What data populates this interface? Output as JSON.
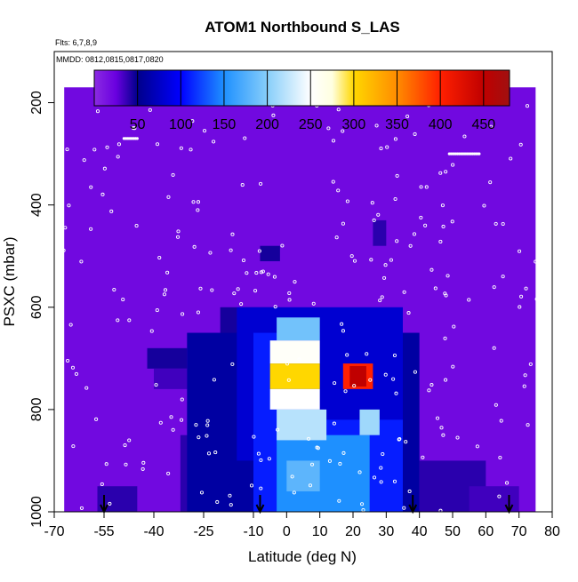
{
  "chart_data": {
    "type": "heatmap",
    "title": "ATOM1 Northbound S_LAS",
    "annotations": [
      "Flts: 6,7,8,9",
      "MMDD: 0812,0815,0817,0820"
    ],
    "xlabel": "Latitude (deg N)",
    "ylabel": "PSXC (mbar)",
    "xlim": [
      -70,
      80
    ],
    "ylim": [
      1000,
      100
    ],
    "x_ticks": [
      -70,
      -55,
      -40,
      -25,
      -10,
      0,
      10,
      20,
      30,
      40,
      50,
      60,
      70,
      80
    ],
    "x_tick_labels": [
      "-70",
      "-55",
      "-40",
      "-25",
      "-10",
      "0",
      "10",
      "20",
      "30",
      "40",
      "50",
      "60",
      "70",
      "80"
    ],
    "y_ticks": [
      200,
      400,
      600,
      800,
      1000
    ],
    "y_tick_labels": [
      "200",
      "400",
      "600",
      "800",
      "1000"
    ],
    "colorbar": {
      "range": [
        0,
        480
      ],
      "ticks": [
        50,
        100,
        150,
        200,
        250,
        300,
        350,
        400,
        450
      ],
      "tick_labels": [
        "50",
        "100",
        "150",
        "200",
        "250",
        "300",
        "350",
        "400",
        "450"
      ],
      "stops": [
        {
          "value": 0,
          "color": "#8b2be2"
        },
        {
          "value": 25,
          "color": "#6a00e0"
        },
        {
          "value": 50,
          "color": "#00008b"
        },
        {
          "value": 100,
          "color": "#0000ff"
        },
        {
          "value": 150,
          "color": "#1e90ff"
        },
        {
          "value": 200,
          "color": "#87cefa"
        },
        {
          "value": 250,
          "color": "#ffffff"
        },
        {
          "value": 275,
          "color": "#ffffe0"
        },
        {
          "value": 300,
          "color": "#ffd700"
        },
        {
          "value": 350,
          "color": "#ff8c00"
        },
        {
          "value": 400,
          "color": "#ff2000"
        },
        {
          "value": 450,
          "color": "#c00000"
        },
        {
          "value": 480,
          "color": "#a01010"
        }
      ]
    },
    "heatmap_cells": [
      {
        "lat": [
          -67,
          75
        ],
        "p": [
          170,
          1000
        ],
        "v": 20
      },
      {
        "lat": [
          -32,
          -5
        ],
        "p": [
          850,
          1000
        ],
        "v": 40
      },
      {
        "lat": [
          40,
          60
        ],
        "p": [
          900,
          1000
        ],
        "v": 40
      },
      {
        "lat": [
          -20,
          -2
        ],
        "p": [
          600,
          660
        ],
        "v": 45
      },
      {
        "lat": [
          -42,
          -30
        ],
        "p": [
          680,
          720
        ],
        "v": 45
      },
      {
        "lat": [
          -40,
          -30
        ],
        "p": [
          720,
          760
        ],
        "v": 35
      },
      {
        "lat": [
          -30,
          40
        ],
        "p": [
          650,
          1000
        ],
        "v": 60
      },
      {
        "lat": [
          -15,
          35
        ],
        "p": [
          600,
          900
        ],
        "v": 80
      },
      {
        "lat": [
          -10,
          35
        ],
        "p": [
          820,
          1000
        ],
        "v": 110
      },
      {
        "lat": [
          -3,
          25
        ],
        "p": [
          850,
          1000
        ],
        "v": 150
      },
      {
        "lat": [
          -10,
          10
        ],
        "p": [
          650,
          850
        ],
        "v": 110
      },
      {
        "lat": [
          -3,
          10
        ],
        "p": [
          620,
          665
        ],
        "v": 190
      },
      {
        "lat": [
          -5,
          10
        ],
        "p": [
          665,
          710
        ],
        "v": 255
      },
      {
        "lat": [
          -5,
          10
        ],
        "p": [
          710,
          760
        ],
        "v": 300
      },
      {
        "lat": [
          -5,
          10
        ],
        "p": [
          760,
          800
        ],
        "v": 250
      },
      {
        "lat": [
          -3,
          12
        ],
        "p": [
          800,
          860
        ],
        "v": 220
      },
      {
        "lat": [
          0,
          10
        ],
        "p": [
          900,
          960
        ],
        "v": 180
      },
      {
        "lat": [
          17,
          26
        ],
        "p": [
          710,
          760
        ],
        "v": 400
      },
      {
        "lat": [
          19,
          24
        ],
        "p": [
          715,
          755
        ],
        "v": 450
      },
      {
        "lat": [
          22,
          28
        ],
        "p": [
          800,
          850
        ],
        "v": 210
      },
      {
        "lat": [
          -57,
          -45
        ],
        "p": [
          950,
          1000
        ],
        "v": 40
      },
      {
        "lat": [
          55,
          70
        ],
        "p": [
          950,
          1000
        ],
        "v": 35
      },
      {
        "lat": [
          -8,
          -2
        ],
        "p": [
          480,
          510
        ],
        "v": 45
      },
      {
        "lat": [
          26,
          30
        ],
        "p": [
          430,
          480
        ],
        "v": 40
      }
    ],
    "arrow_latitudes": [
      -55,
      -8,
      38,
      67
    ]
  }
}
